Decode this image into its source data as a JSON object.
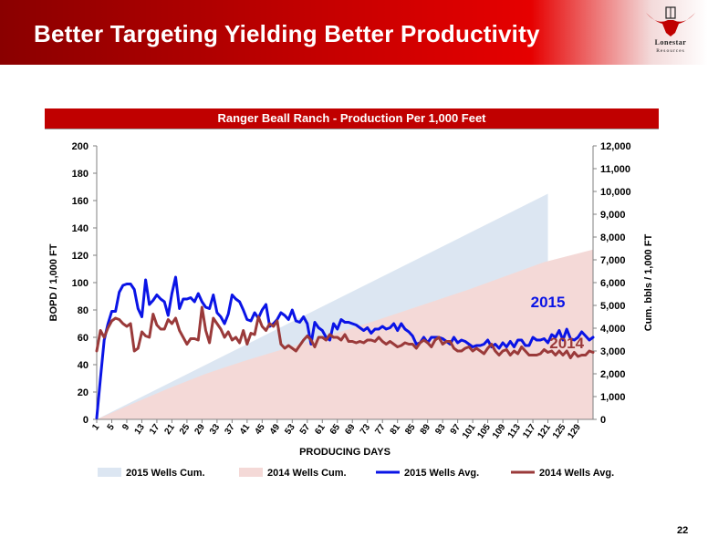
{
  "slide": {
    "title": "Better Targeting Yielding Better Productivity",
    "page_number": "22"
  },
  "logo": {
    "top_text": "Lonestar",
    "bottom_text": "Resources",
    "colors": {
      "red": "#c00000",
      "dark": "#222222"
    }
  },
  "colors": {
    "header_dark": "#8a0000",
    "header_red": "#e60000",
    "banner": "#c00000",
    "cum_2015": "#dce6f2",
    "cum_2014": "#f4d9d7",
    "avg_2015": "#0a14e6",
    "avg_2014": "#9a3a3a"
  },
  "chart_data": {
    "type": "line",
    "title": "Ranger Beall Ranch - Production Per 1,000 Feet",
    "xlabel": "PRODUCING  DAYS",
    "ylabel": "BOPD / 1,000 FT",
    "y2label": "Cum. bbls / 1,000 FT",
    "xlim": [
      1,
      133
    ],
    "ylim": [
      0,
      200
    ],
    "y2lim": [
      0,
      12000
    ],
    "y_ticks": [
      0,
      20,
      40,
      60,
      80,
      100,
      120,
      140,
      160,
      180,
      200
    ],
    "y2_ticks": [
      0,
      1000,
      2000,
      3000,
      4000,
      5000,
      6000,
      7000,
      8000,
      9000,
      10000,
      11000,
      12000
    ],
    "y2_tick_labels": [
      "0",
      "1,000",
      "2,000",
      "3,000",
      "4,000",
      "5,000",
      "6,000",
      "7,000",
      "8,000",
      "9,000",
      "10,000",
      "11,000",
      "12,000"
    ],
    "x_ticks": [
      1,
      5,
      9,
      13,
      17,
      21,
      25,
      29,
      33,
      37,
      41,
      45,
      49,
      53,
      57,
      61,
      65,
      69,
      73,
      77,
      81,
      85,
      89,
      93,
      97,
      101,
      105,
      109,
      113,
      117,
      121,
      125,
      129
    ],
    "grid": false,
    "legend": "bottom",
    "annotations": [
      {
        "text": "2015",
        "series": "2015 Wells Avg.",
        "x": 121,
        "y": 82
      },
      {
        "text": "2014",
        "series": "2014 Wells Avg.",
        "x": 126,
        "y": 52
      }
    ],
    "series": [
      {
        "name": "2015 Wells Cum.",
        "kind": "area",
        "axis": "right",
        "color": "#dce6f2",
        "x": [
          1,
          121,
          121
        ],
        "values": [
          0,
          9900,
          4800
        ]
      },
      {
        "name": "2014 Wells Cum.",
        "kind": "area",
        "axis": "right",
        "color": "#f4d9d7",
        "x": [
          1,
          10,
          20,
          30,
          40,
          50,
          60,
          70,
          80,
          90,
          100,
          110,
          120,
          133
        ],
        "values": [
          0,
          650,
          1350,
          2000,
          2550,
          3050,
          3550,
          4050,
          4600,
          5150,
          5700,
          6300,
          6900,
          7450
        ]
      },
      {
        "name": "2015 Wells Avg.",
        "kind": "line",
        "axis": "left",
        "color": "#0a14e6",
        "values": [
          1,
          30,
          58,
          70,
          79,
          79,
          93,
          98,
          99,
          99,
          95,
          81,
          75,
          102,
          84,
          87,
          91,
          88,
          86,
          76,
          92,
          104,
          81,
          88,
          88,
          89,
          86,
          92,
          86,
          82,
          81,
          91,
          78,
          75,
          70,
          77,
          91,
          88,
          86,
          80,
          73,
          72,
          78,
          74,
          80,
          84,
          68,
          70,
          73,
          78,
          76,
          73,
          80,
          72,
          71,
          75,
          70,
          55,
          71,
          67,
          65,
          60,
          58,
          70,
          66,
          73,
          71,
          71,
          70,
          69,
          67,
          65,
          67,
          63,
          66,
          66,
          68,
          66,
          67,
          70,
          65,
          70,
          66,
          64,
          61,
          55,
          56,
          60,
          56,
          60,
          60,
          60,
          59,
          57,
          55,
          60,
          56,
          58,
          57,
          55,
          53,
          54,
          54,
          55,
          58,
          53,
          55,
          52,
          56,
          53,
          57,
          53,
          58,
          58,
          54,
          54,
          60,
          58,
          58,
          59,
          56,
          62,
          60,
          65,
          58,
          66,
          59,
          58,
          60,
          64,
          61,
          58,
          60
        ]
      },
      {
        "name": "2014 Wells Avg.",
        "kind": "line",
        "axis": "left",
        "color": "#9a3a3a",
        "values": [
          50,
          65,
          60,
          67,
          72,
          74,
          73,
          70,
          68,
          70,
          50,
          52,
          64,
          61,
          60,
          77,
          69,
          66,
          66,
          73,
          70,
          74,
          65,
          60,
          55,
          59,
          59,
          58,
          82,
          65,
          56,
          74,
          70,
          66,
          60,
          64,
          58,
          60,
          56,
          65,
          55,
          63,
          62,
          75,
          68,
          65,
          70,
          68,
          72,
          55,
          52,
          54,
          52,
          50,
          54,
          58,
          61,
          58,
          53,
          60,
          60,
          58,
          62,
          60,
          60,
          58,
          62,
          57,
          57,
          56,
          57,
          56,
          58,
          58,
          57,
          60,
          57,
          55,
          57,
          55,
          53,
          54,
          56,
          55,
          55,
          52,
          56,
          58,
          56,
          53,
          58,
          60,
          55,
          57,
          57,
          52,
          50,
          50,
          52,
          53,
          50,
          52,
          50,
          48,
          52,
          55,
          50,
          47,
          50,
          51,
          47,
          50,
          48,
          53,
          50,
          47,
          47,
          47,
          48,
          51,
          49,
          50,
          47,
          50,
          47,
          50,
          45,
          49,
          46,
          47,
          47,
          50,
          49
        ]
      }
    ]
  }
}
